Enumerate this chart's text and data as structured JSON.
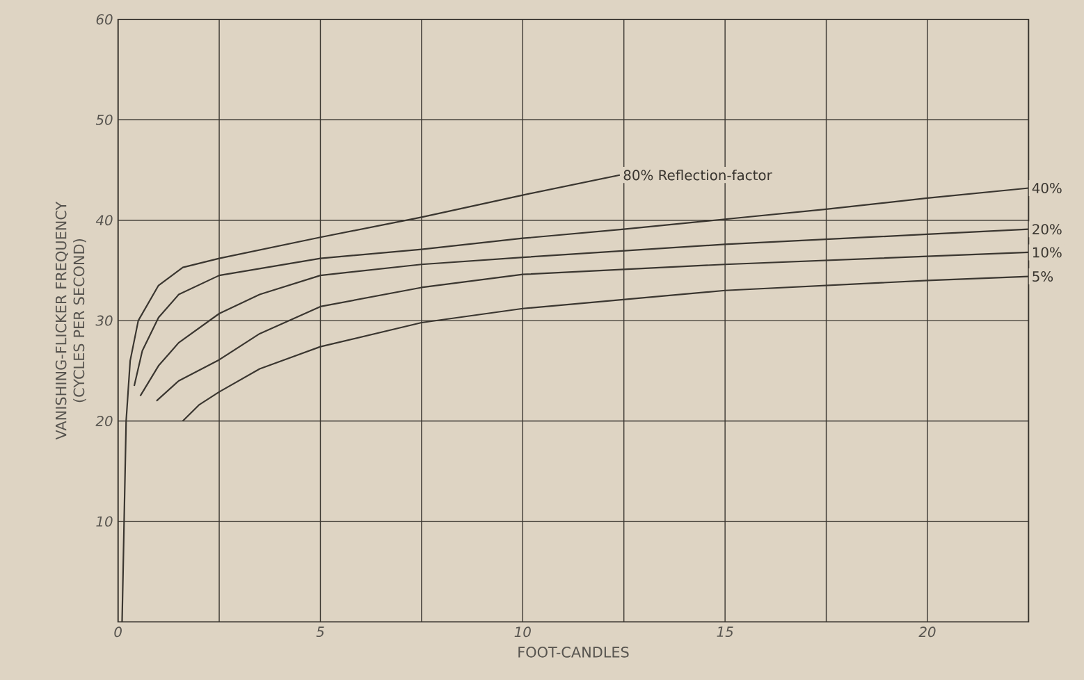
{
  "chart_data": {
    "type": "line",
    "xlabel": "FOOT-CANDLES",
    "ylabel": "VANISHING-FLICKER FREQUENCY (CYCLES PER SECOND)",
    "xlim": [
      0,
      22.5
    ],
    "ylim": [
      0,
      60
    ],
    "xticks": [
      0,
      {
        "value": 2.5,
        "label": null
      },
      5,
      {
        "value": 7.5,
        "label": null
      },
      10,
      {
        "value": 12.5,
        "label": null
      },
      15,
      {
        "value": 17.5,
        "label": null
      },
      20,
      {
        "value": 22.5,
        "label": null
      }
    ],
    "yticks": [
      10,
      20,
      30,
      40,
      50,
      60
    ],
    "grid": true,
    "series": [
      {
        "name": "80% Reflection-factor",
        "color": "#3a3630",
        "x": [
          0.1,
          0.15,
          0.2,
          0.3,
          0.5,
          1,
          1.6,
          2.5,
          5,
          7.5,
          10,
          12.4
        ],
        "values": [
          0,
          10,
          20,
          26,
          30,
          33.5,
          35.3,
          36.2,
          38.3,
          40.3,
          42.5,
          44.5
        ]
      },
      {
        "name": "40%",
        "color": "#3a3630",
        "x": [
          0.4,
          0.6,
          1,
          1.5,
          2.5,
          5,
          7.5,
          10,
          12.5,
          15,
          17.5,
          20,
          22.5
        ],
        "values": [
          23.5,
          27,
          30.3,
          32.6,
          34.5,
          36.2,
          37.1,
          38.2,
          39.1,
          40.1,
          41.1,
          42.2,
          43.2
        ]
      },
      {
        "name": "20%",
        "color": "#3a3630",
        "x": [
          0.55,
          1,
          1.5,
          2.5,
          3.5,
          5,
          7.5,
          10,
          15,
          20,
          22.5
        ],
        "values": [
          22.5,
          25.5,
          27.8,
          30.7,
          32.6,
          34.5,
          35.6,
          36.3,
          37.6,
          38.6,
          39.1
        ]
      },
      {
        "name": "10%",
        "color": "#3a3630",
        "x": [
          0.95,
          1.5,
          2.5,
          3.5,
          5,
          7.5,
          10,
          15,
          20,
          22.5
        ],
        "values": [
          22,
          24,
          26.1,
          28.7,
          31.4,
          33.3,
          34.6,
          35.6,
          36.4,
          36.8
        ]
      },
      {
        "name": "5%",
        "color": "#3a3630",
        "x": [
          1.6,
          2,
          2.5,
          3.5,
          5,
          7.5,
          10,
          15,
          20,
          22.5
        ],
        "values": [
          20,
          21.6,
          22.9,
          25.2,
          27.4,
          29.8,
          31.2,
          33,
          34,
          34.4
        ]
      }
    ]
  }
}
